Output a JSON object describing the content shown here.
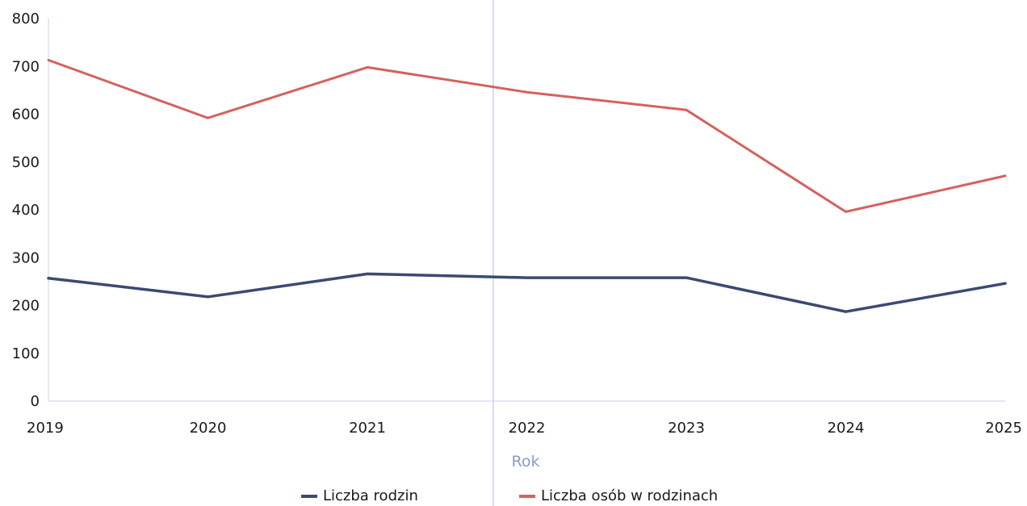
{
  "chart_data": {
    "type": "line",
    "categories": [
      "2019",
      "2020",
      "2021",
      "2022",
      "2023",
      "2024",
      "2025"
    ],
    "series": [
      {
        "name": "Liczba rodzin",
        "color": "#3a4a72",
        "values": [
          257,
          218,
          266,
          258,
          258,
          187,
          246
        ]
      },
      {
        "name": "Liczba osób w rodzinach",
        "color": "#d4625e",
        "values": [
          713,
          592,
          698,
          646,
          609,
          396,
          471
        ]
      }
    ],
    "xlabel": "Rok",
    "ylabel": "",
    "ylim": [
      0,
      800
    ],
    "yticks": [
      "0",
      "100",
      "200",
      "300",
      "400",
      "500",
      "600",
      "700",
      "800"
    ],
    "legend_position": "bottom",
    "grid": false
  }
}
